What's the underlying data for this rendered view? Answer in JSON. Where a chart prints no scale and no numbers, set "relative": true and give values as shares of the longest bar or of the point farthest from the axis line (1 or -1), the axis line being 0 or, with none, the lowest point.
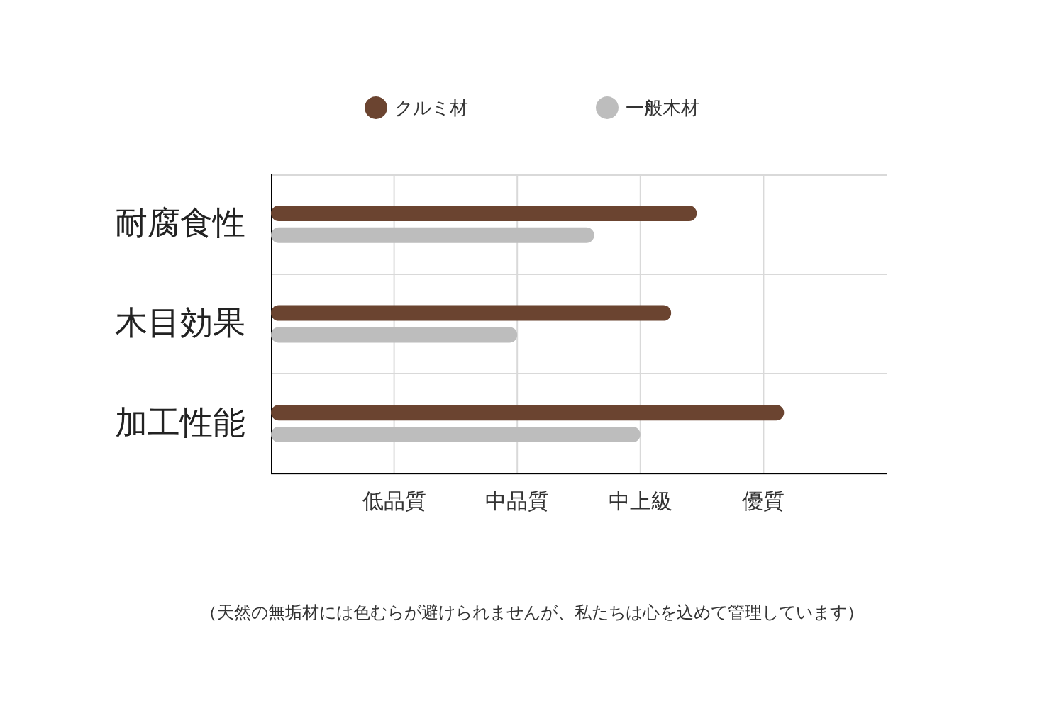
{
  "chart_data": {
    "type": "bar",
    "orientation": "horizontal",
    "relative": true,
    "categories": [
      "耐腐食性",
      "木目効果",
      "加工性能"
    ],
    "series": [
      {
        "name": "クルミ材",
        "color": "#6b4430",
        "values": [
          0.83,
          0.78,
          1
        ]
      },
      {
        "name": "一般木材",
        "color": "#bdbdbd",
        "values": [
          0.63,
          0.48,
          0.72
        ]
      }
    ],
    "grid": true,
    "legend": "top",
    "marker": "circle",
    "annotations": [
      "低品質",
      "中品質",
      "中上級",
      "優質",
      "（天然の無垢材には色むらが避けられませんが、私たちは心を込めて管理しています）"
    ]
  }
}
